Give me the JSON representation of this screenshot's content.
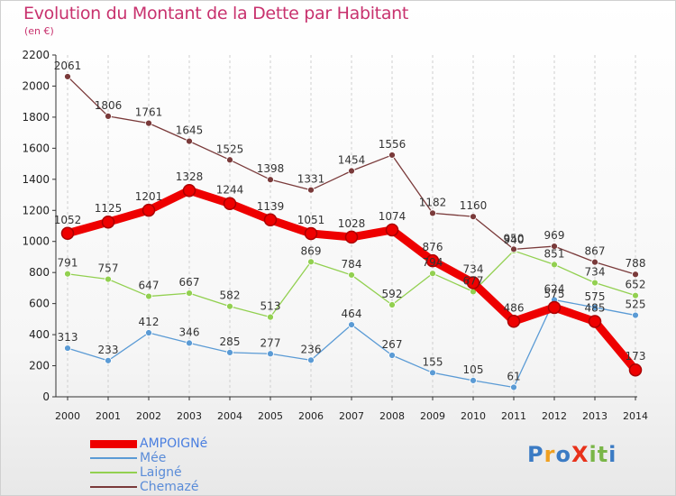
{
  "page": {
    "title": "Evolution du Montant de la Dette par Habitant",
    "unit": "(en €)",
    "logo": {
      "text": "ProXiti",
      "colors": [
        "#3b7bc4",
        "#f0a020",
        "#3b7bc4",
        "#e8311a",
        "#7ab648",
        "#7ab648",
        "#3b7bc4"
      ]
    }
  },
  "chart_data": {
    "type": "line",
    "title": "Evolution du Montant de la Dette par Habitant",
    "ylabel": "(en €)",
    "xlabel": "",
    "x": [
      "2000",
      "2001",
      "2002",
      "2003",
      "2004",
      "2005",
      "2006",
      "2007",
      "2008",
      "2009",
      "2010",
      "2011",
      "2012",
      "2013",
      "2014"
    ],
    "ylim": [
      0,
      2200
    ],
    "yticks": [
      "0",
      "200",
      "400",
      "600",
      "800",
      "1000",
      "1200",
      "1400",
      "1600",
      "1800",
      "2000",
      "2200"
    ],
    "grid": "vertical dashed",
    "legend_position": "bottom-left",
    "series": [
      {
        "name": "AMPOIGNé",
        "color": "#ee0000",
        "emphasis": true,
        "values": [
          1052,
          1125,
          1201,
          1328,
          1244,
          1139,
          1051,
          1028,
          1074,
          876,
          734,
          486,
          575,
          485,
          173
        ],
        "labels": [
          "1052",
          "1125",
          "1201",
          "1328",
          "1244",
          "1139",
          "1051",
          "1028",
          "1074",
          "876",
          "734",
          "486",
          "575",
          "485",
          "173"
        ]
      },
      {
        "name": "Mée",
        "color": "#5b9bd5",
        "values": [
          313,
          233,
          412,
          346,
          285,
          277,
          236,
          464,
          267,
          155,
          105,
          61,
          624,
          575,
          525
        ],
        "labels": [
          "313",
          "233",
          "412",
          "346",
          "285",
          "277",
          "236",
          "464",
          "267",
          "155",
          "105",
          "61",
          "624",
          "575",
          "525"
        ]
      },
      {
        "name": "Laigné",
        "color": "#92d050",
        "values": [
          791,
          757,
          647,
          667,
          582,
          513,
          869,
          784,
          592,
          794,
          677,
          940,
          851,
          734,
          652
        ],
        "labels": [
          "791",
          "757",
          "647",
          "667",
          "582",
          "513",
          "869",
          "784",
          "592",
          "794",
          "677",
          "940",
          "851",
          "734",
          "652"
        ]
      },
      {
        "name": "Chemazé",
        "color": "#7a3a3a",
        "values": [
          2061,
          1806,
          1761,
          1645,
          1525,
          1398,
          1331,
          1454,
          1556,
          1182,
          1160,
          950,
          969,
          867,
          788
        ],
        "labels": [
          "2061",
          "1806",
          "1761",
          "1645",
          "1525",
          "1398",
          "1331",
          "1454",
          "1556",
          "1182",
          "1160",
          "950",
          "969",
          "867",
          "788"
        ]
      }
    ]
  }
}
